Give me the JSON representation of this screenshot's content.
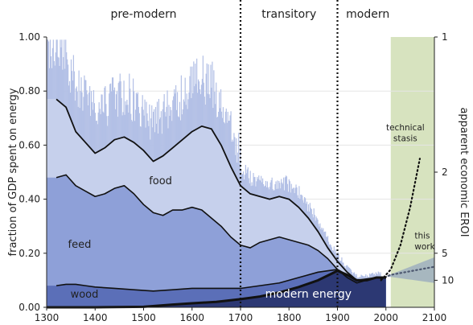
{
  "chart_data": {
    "type": "area",
    "title": "",
    "xlabel": "",
    "ylabel": "fraction of GDP spent on energy",
    "y2label": "apparent economic EROI",
    "xlim": [
      1300,
      2100
    ],
    "ylim": [
      0,
      1
    ],
    "x_ticks": [
      "1300",
      "1400",
      "1500",
      "1600",
      "1700",
      "1800",
      "1900",
      "2000",
      "2100"
    ],
    "y_ticks": [
      "0.00",
      "0.20",
      "0.40",
      "0.60",
      "0.80",
      "1.00"
    ],
    "y2_ticks": [
      {
        "label": "1",
        "fraction": 1.0
      },
      {
        "label": "2",
        "fraction": 0.5
      },
      {
        "label": "5",
        "fraction": 0.2
      },
      {
        "label": "10",
        "fraction": 0.1
      }
    ],
    "eras": [
      {
        "label": "pre-modern",
        "from": 1300,
        "to": 1700
      },
      {
        "label": "transitory",
        "from": 1700,
        "to": 1900
      },
      {
        "label": "modern",
        "from": 1900,
        "to": 2100
      }
    ],
    "dividers": [
      1700,
      1900
    ],
    "projection_band": {
      "from": 2010,
      "to": 2100,
      "color": "#d7e3bf"
    },
    "colors": {
      "food": "#c6d0ec",
      "feed": "#8ea0d8",
      "wood": "#5b6fb8",
      "modern": "#2c3873",
      "noise": "#b3c0e6",
      "line": "#111111",
      "divider": "#111111"
    },
    "series": [
      {
        "name": "food",
        "x": [
          1300,
          1320,
          1340,
          1360,
          1380,
          1400,
          1420,
          1440,
          1460,
          1480,
          1500,
          1520,
          1540,
          1560,
          1580,
          1600,
          1620,
          1640,
          1660,
          1680,
          1700,
          1720,
          1740,
          1760,
          1780,
          1800,
          1820,
          1840,
          1860,
          1880,
          1900,
          1920,
          1940,
          1960,
          1980,
          2000
        ],
        "values": [
          null,
          0.77,
          0.74,
          0.65,
          0.61,
          0.57,
          0.59,
          0.62,
          0.63,
          0.61,
          0.58,
          0.54,
          0.56,
          0.59,
          0.62,
          0.65,
          0.67,
          0.66,
          0.6,
          0.52,
          0.45,
          0.42,
          0.41,
          0.4,
          0.41,
          0.4,
          0.37,
          0.33,
          0.28,
          0.22,
          0.17,
          0.13,
          0.1,
          0.1,
          0.11,
          0.11
        ]
      },
      {
        "name": "feed",
        "x": [
          1300,
          1320,
          1340,
          1360,
          1380,
          1400,
          1420,
          1440,
          1460,
          1480,
          1500,
          1520,
          1540,
          1560,
          1580,
          1600,
          1620,
          1640,
          1660,
          1680,
          1700,
          1720,
          1740,
          1760,
          1780,
          1800,
          1820,
          1840,
          1860,
          1880,
          1900,
          1920,
          1940,
          1960,
          1980,
          2000
        ],
        "values": [
          null,
          0.48,
          0.49,
          0.45,
          0.43,
          0.41,
          0.42,
          0.44,
          0.45,
          0.42,
          0.38,
          0.35,
          0.34,
          0.36,
          0.36,
          0.37,
          0.36,
          0.33,
          0.3,
          0.26,
          0.23,
          0.22,
          0.24,
          0.25,
          0.26,
          0.25,
          0.24,
          0.23,
          0.21,
          0.18,
          0.14,
          0.11,
          0.09,
          0.1,
          0.11,
          0.11
        ]
      },
      {
        "name": "wood",
        "x": [
          1300,
          1320,
          1340,
          1360,
          1380,
          1400,
          1440,
          1480,
          1520,
          1560,
          1600,
          1640,
          1680,
          1700,
          1740,
          1780,
          1820,
          1860,
          1900,
          1940,
          1980,
          2000
        ],
        "values": [
          null,
          0.08,
          0.085,
          0.085,
          0.08,
          0.075,
          0.07,
          0.065,
          0.06,
          0.065,
          0.07,
          0.07,
          0.07,
          0.07,
          0.08,
          0.09,
          0.11,
          0.13,
          0.14,
          0.1,
          0.11,
          0.11
        ]
      },
      {
        "name": "modern energy",
        "x": [
          1300,
          1400,
          1500,
          1560,
          1600,
          1650,
          1700,
          1740,
          1780,
          1820,
          1860,
          1900,
          1920,
          1940,
          1960,
          1980,
          2000
        ],
        "values": [
          0,
          0,
          0.002,
          0.01,
          0.015,
          0.02,
          0.03,
          0.04,
          0.055,
          0.075,
          0.1,
          0.135,
          0.12,
          0.1,
          0.1,
          0.11,
          0.11
        ]
      }
    ],
    "projections": [
      {
        "name": "technical stasis",
        "style": "dotted",
        "x": [
          1990,
          2010,
          2030,
          2050,
          2070
        ],
        "values": [
          0.1,
          0.14,
          0.23,
          0.37,
          0.55
        ]
      },
      {
        "name": "this work",
        "style": "dotted",
        "x": [
          1990,
          2010,
          2040,
          2070,
          2100
        ],
        "values": [
          0.105,
          0.12,
          0.13,
          0.14,
          0.15
        ]
      }
    ],
    "annotations": {
      "pre_modern": "pre-modern",
      "transitory": "transitory",
      "modern": "modern",
      "food": "food",
      "feed": "feed",
      "wood": "wood",
      "modern_energy": "modern energy",
      "technical": "technical",
      "stasis": "stasis",
      "this": "this",
      "work": "work"
    }
  }
}
